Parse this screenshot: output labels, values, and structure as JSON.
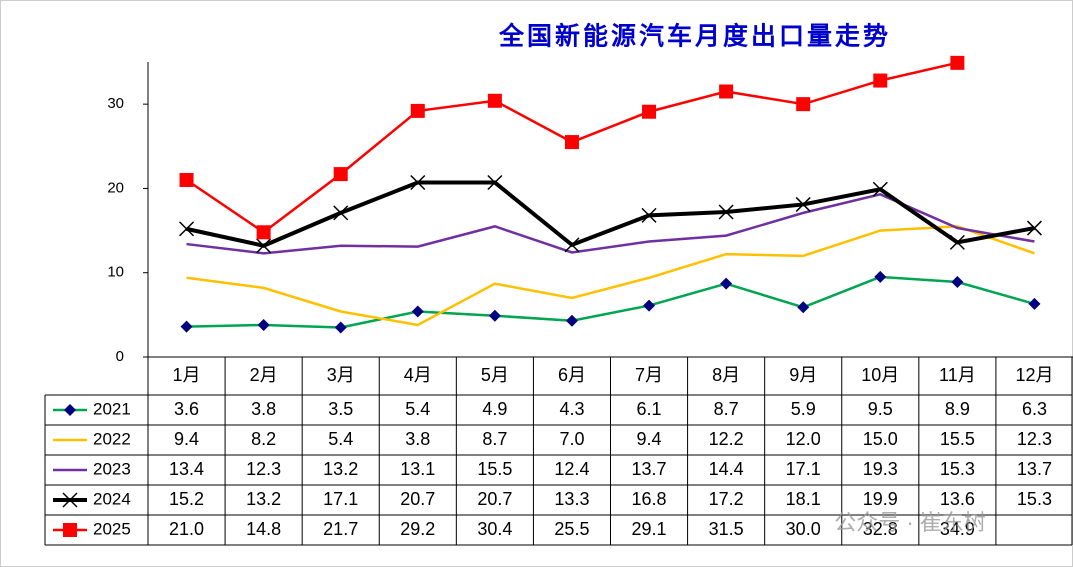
{
  "chart_data": {
    "type": "line",
    "title": "全国新能源汽车月度出口量走势",
    "categories": [
      "1月",
      "2月",
      "3月",
      "4月",
      "5月",
      "6月",
      "7月",
      "8月",
      "9月",
      "10月",
      "11月",
      "12月"
    ],
    "series": [
      {
        "name": "2021",
        "color": "#00a550",
        "marker": "diamond",
        "marker_color": "#000080",
        "values": [
          3.6,
          3.8,
          3.5,
          5.4,
          4.9,
          4.3,
          6.1,
          8.7,
          5.9,
          9.5,
          8.9,
          6.3
        ],
        "value_labels": [
          "3.6",
          "3.8",
          "3.5",
          "5.4",
          "4.9",
          "4.3",
          "6.1",
          "8.7",
          "5.9",
          "9.5",
          "8.9",
          "6.3"
        ]
      },
      {
        "name": "2022",
        "color": "#ffc000",
        "marker": "none",
        "values": [
          9.4,
          8.2,
          5.4,
          3.8,
          8.7,
          7.0,
          9.4,
          12.2,
          12.0,
          15.0,
          15.5,
          12.3
        ],
        "value_labels": [
          "9.4",
          "8.2",
          "5.4",
          "3.8",
          "8.7",
          "7.0",
          "9.4",
          "12.2",
          "12.0",
          "15.0",
          "15.5",
          "12.3"
        ]
      },
      {
        "name": "2023",
        "color": "#7030a0",
        "marker": "none",
        "values": [
          13.4,
          12.3,
          13.2,
          13.1,
          15.5,
          12.4,
          13.7,
          14.4,
          17.1,
          19.3,
          15.3,
          13.7
        ],
        "value_labels": [
          "13.4",
          "12.3",
          "13.2",
          "13.1",
          "15.5",
          "12.4",
          "13.7",
          "14.4",
          "17.1",
          "19.3",
          "15.3",
          "13.7"
        ]
      },
      {
        "name": "2024",
        "color": "#000000",
        "marker": "x",
        "marker_color": "#000000",
        "values": [
          15.2,
          13.2,
          17.1,
          20.7,
          20.7,
          13.3,
          16.8,
          17.2,
          18.1,
          19.9,
          13.6,
          15.3
        ],
        "value_labels": [
          "15.2",
          "13.2",
          "17.1",
          "20.7",
          "20.7",
          "13.3",
          "16.8",
          "17.2",
          "18.1",
          "19.9",
          "13.6",
          "15.3"
        ]
      },
      {
        "name": "2025",
        "color": "#ff0000",
        "marker": "square",
        "marker_color": "#ff0000",
        "values": [
          21.0,
          14.8,
          21.7,
          29.2,
          30.4,
          25.5,
          29.1,
          31.5,
          30.0,
          32.8,
          34.9,
          null
        ],
        "value_labels": [
          "21.0",
          "14.8",
          "21.7",
          "29.2",
          "30.4",
          "25.5",
          "29.1",
          "31.5",
          "30.0",
          "32.8",
          "34.9",
          null
        ]
      }
    ],
    "ylim": [
      0,
      35
    ],
    "yticks": [
      0,
      10,
      20,
      30
    ],
    "grid": false,
    "watermark": "公众号 · 崔东树"
  }
}
